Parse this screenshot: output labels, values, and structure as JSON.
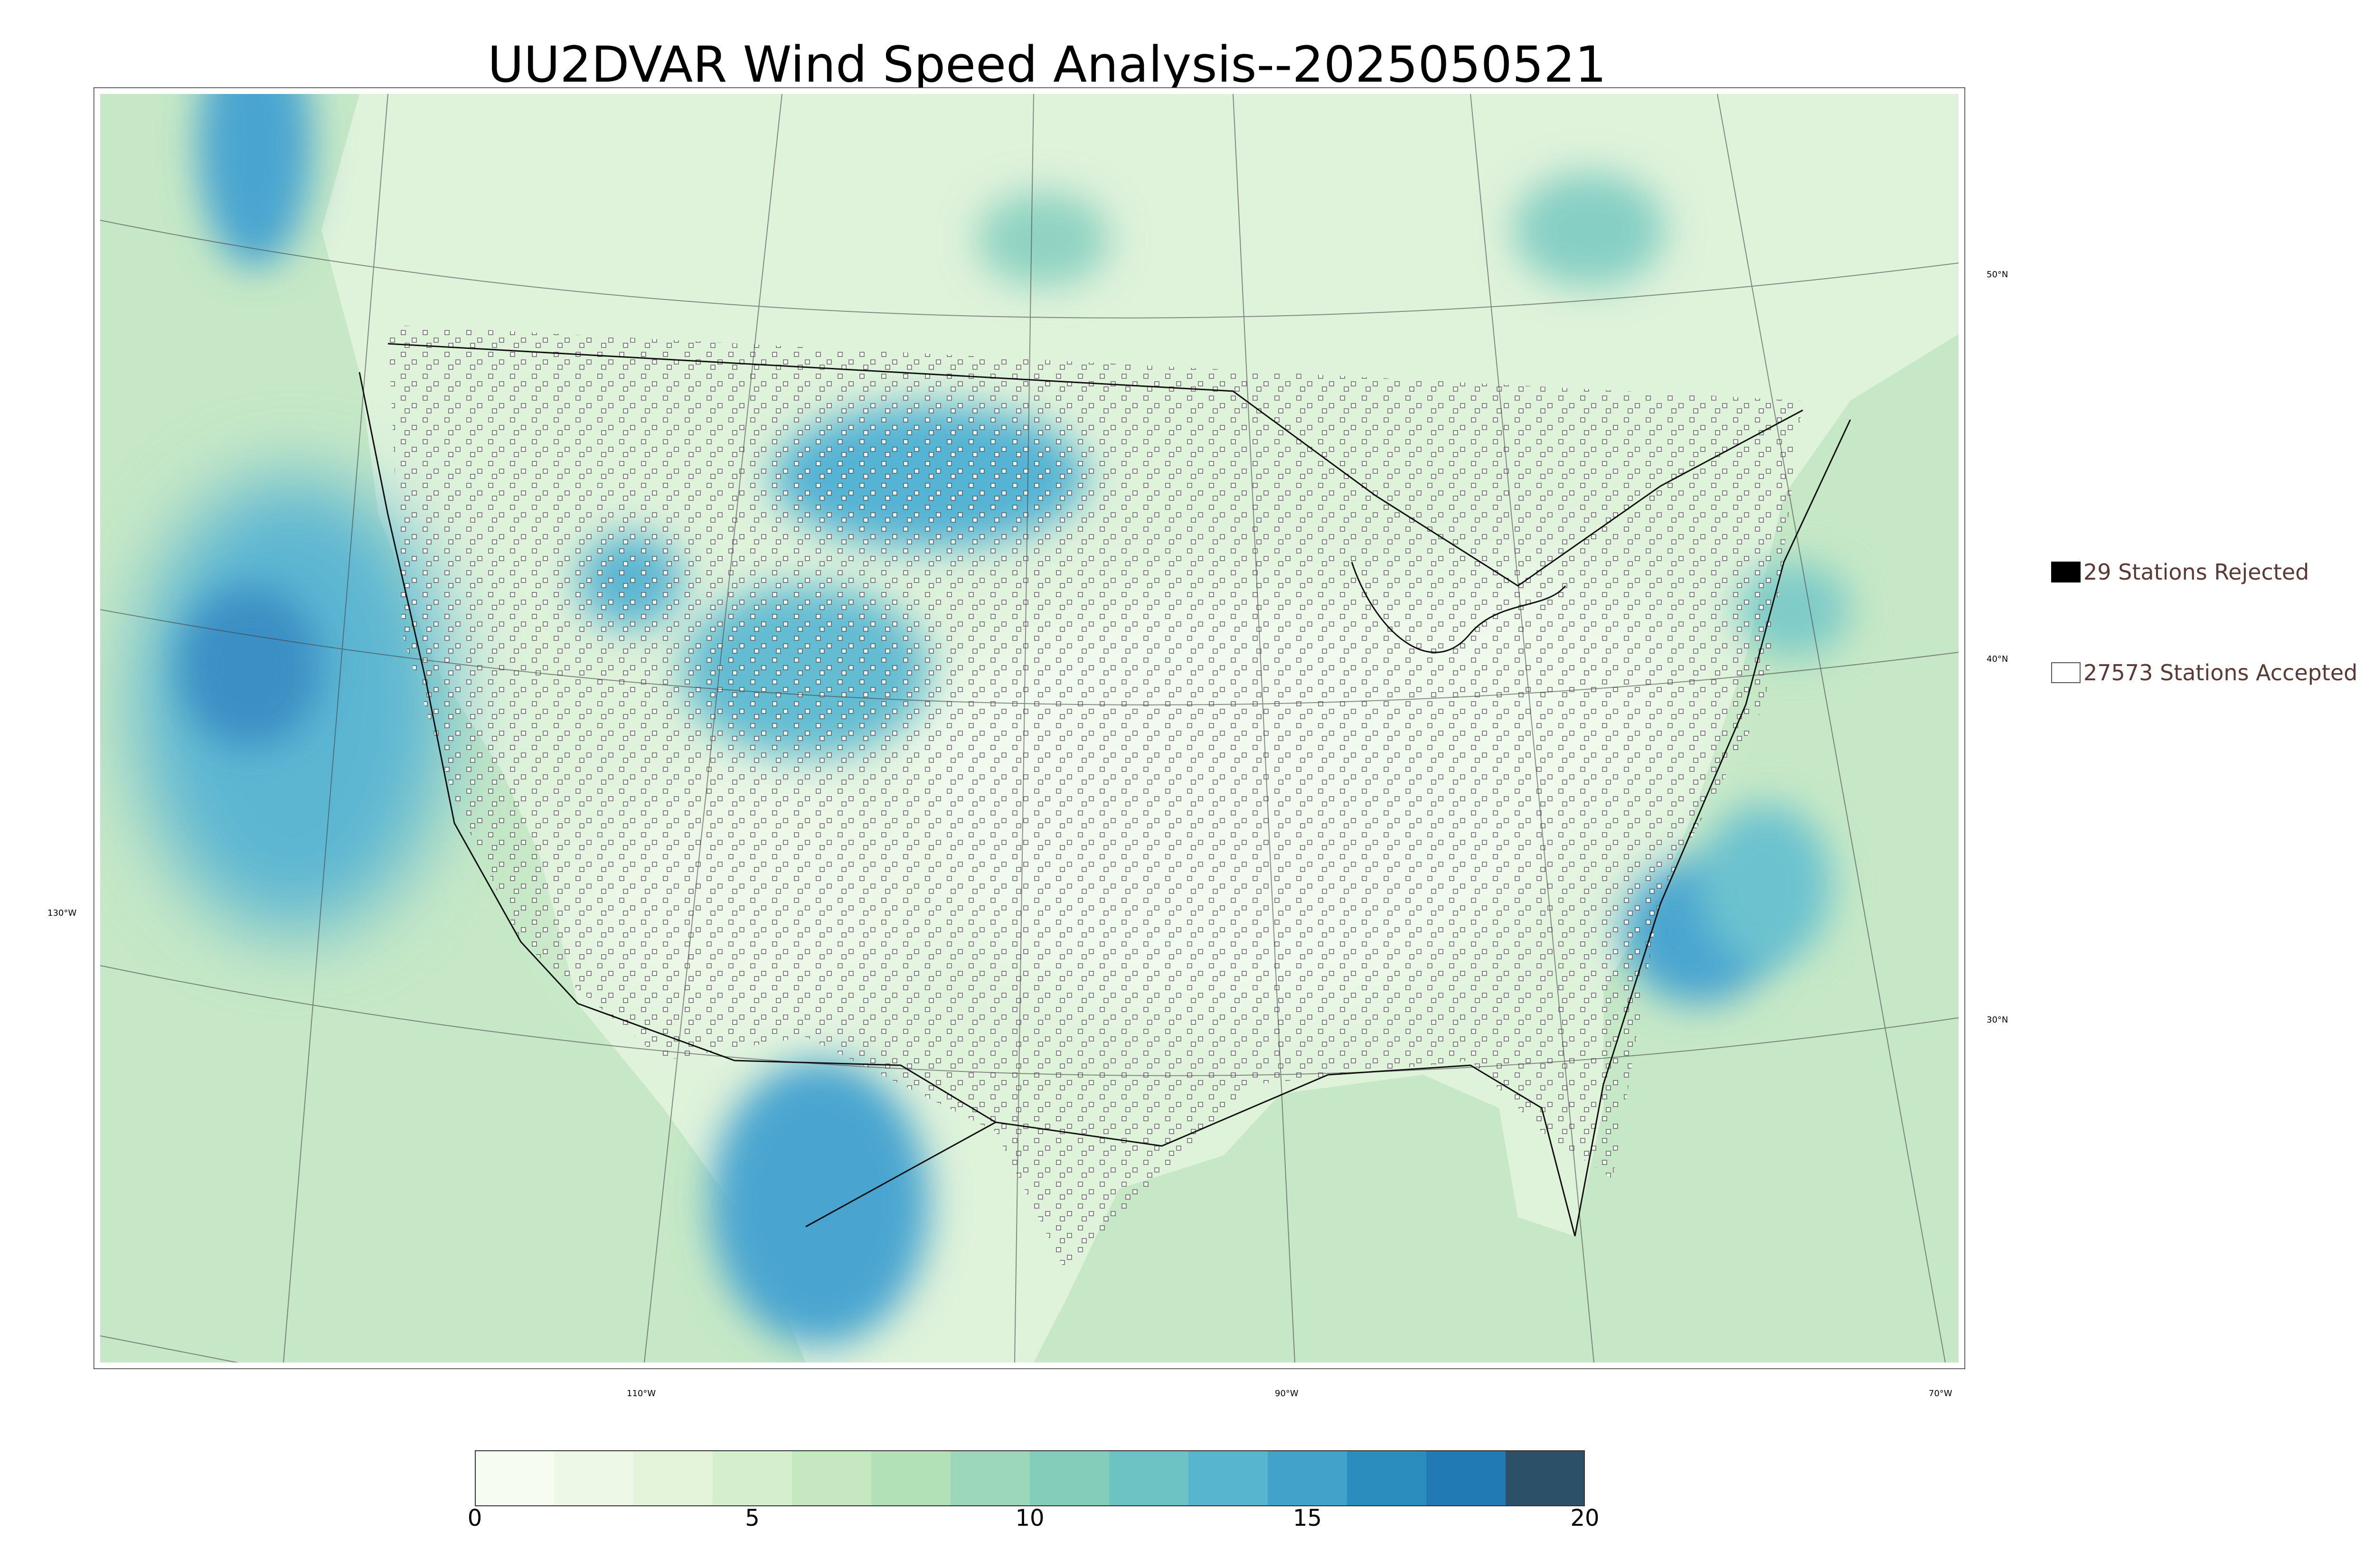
{
  "title": "UU2DVAR Wind Speed Analysis--2025050521",
  "legend": {
    "rejected_label": "29 Stations Rejected",
    "accepted_label": "27573 Stations Accepted",
    "rejected_color": "#000000",
    "accepted_color": "#ffffff"
  },
  "latitude_labels": [
    "50°N",
    "40°N",
    "30°N"
  ],
  "longitude_labels": [
    "130°W",
    "110°W",
    "90°W",
    "70°W"
  ],
  "colorbar": {
    "min": 0,
    "max": 20,
    "tick_labels": [
      "0",
      "5",
      "10",
      "15",
      "20"
    ],
    "colors": [
      "#f7fcf0",
      "#eef8e6",
      "#e4f4da",
      "#d5eece",
      "#c5e8c0",
      "#b2e0b7",
      "#9bd7b8",
      "#84cdbb",
      "#6dc3c4",
      "#57b5cf",
      "#43a2ca",
      "#2b8cbe",
      "#217ab3",
      "#2c5068"
    ]
  },
  "map_colors": {
    "land_base": "#d9f0d3",
    "ocean_base": "#c2e6c4",
    "high_wind": "#3d9bd0",
    "peak_wind": "#2b78b5"
  }
}
